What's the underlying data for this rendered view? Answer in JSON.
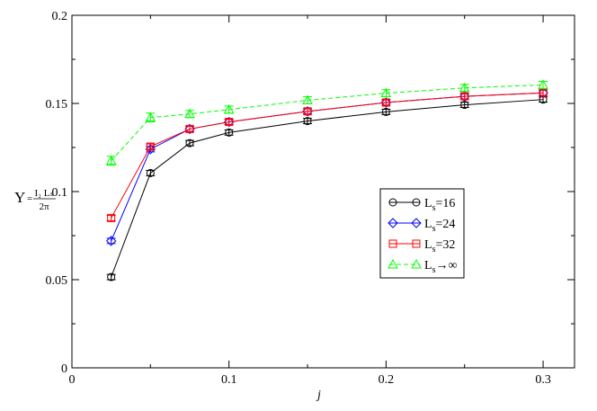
{
  "chart_data": {
    "type": "line",
    "xlabel": "j",
    "ylabel": {
      "symbol": "Υ",
      "equals": "=",
      "numerator": "I₂ Lₛ",
      "denominator": "2π"
    },
    "xlim": [
      0,
      0.32
    ],
    "ylim": [
      0,
      0.2
    ],
    "x_ticks": [
      0,
      0.1,
      0.2,
      0.3
    ],
    "x_tick_labels": [
      "0",
      "0.1",
      "0.2",
      "0.3"
    ],
    "y_ticks": [
      0,
      0.05,
      0.1,
      0.15,
      0.2
    ],
    "y_tick_labels": [
      "0",
      "0.05",
      "0.1",
      "0.15",
      "0.2"
    ],
    "grid": false,
    "legend_position": "center-right",
    "series": [
      {
        "name": "L",
        "name_sub": "s",
        "name_suffix": "=16",
        "color": "#000000",
        "marker": "circle",
        "dashed": false,
        "x": [
          0.025,
          0.05,
          0.075,
          0.1,
          0.15,
          0.2,
          0.25,
          0.3
        ],
        "y": [
          0.0515,
          0.1105,
          0.1275,
          0.1335,
          0.14,
          0.1452,
          0.1492,
          0.1522
        ],
        "err": [
          0.0015,
          0.0015,
          0.0015,
          0.0015,
          0.0015,
          0.0015,
          0.0015,
          0.0015
        ]
      },
      {
        "name": "L",
        "name_sub": "s",
        "name_suffix": "=24",
        "color": "#0000ff",
        "marker": "diamond",
        "dashed": false,
        "x": [
          0.025,
          0.05,
          0.075,
          0.1,
          0.15,
          0.2,
          0.25,
          0.3
        ],
        "y": [
          0.072,
          0.124,
          0.1355,
          0.1395,
          0.1455,
          0.1505,
          0.154,
          0.156
        ],
        "err": [
          0.0015,
          0.0015,
          0.0015,
          0.0015,
          0.0015,
          0.0015,
          0.0015,
          0.0015
        ]
      },
      {
        "name": "L",
        "name_sub": "s",
        "name_suffix": "=32",
        "color": "#ff0000",
        "marker": "square",
        "dashed": false,
        "x": [
          0.025,
          0.05,
          0.075,
          0.1,
          0.15,
          0.2,
          0.25,
          0.3
        ],
        "y": [
          0.085,
          0.1255,
          0.1355,
          0.1395,
          0.1455,
          0.1505,
          0.154,
          0.156
        ],
        "err": [
          0.0015,
          0.0015,
          0.0015,
          0.0015,
          0.0015,
          0.0015,
          0.0015,
          0.0015
        ]
      },
      {
        "name": "L",
        "name_sub": "s",
        "name_suffix": "→∞",
        "color": "#00ff00",
        "marker": "triangle",
        "dashed": true,
        "x": [
          0.025,
          0.05,
          0.075,
          0.1,
          0.15,
          0.2,
          0.25,
          0.3
        ],
        "y": [
          0.1175,
          0.142,
          0.144,
          0.1465,
          0.1518,
          0.1558,
          0.1588,
          0.1605
        ],
        "err": [
          0.0025,
          0.0025,
          0.002,
          0.002,
          0.002,
          0.002,
          0.002,
          0.002
        ]
      }
    ]
  }
}
